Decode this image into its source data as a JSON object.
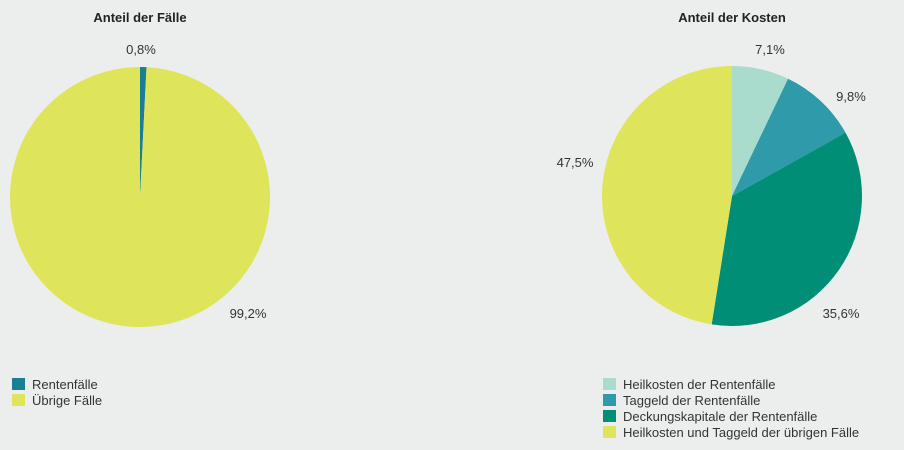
{
  "chart_data": [
    {
      "type": "pie",
      "title": "Anteil der Fälle",
      "slices": [
        {
          "label": "Rentenfälle",
          "value": 0.8,
          "value_label": "0,8%",
          "color": "#1a7f92"
        },
        {
          "label": "Übrige Fälle",
          "value": 99.2,
          "value_label": "99,2%",
          "color": "#dfe55b"
        }
      ]
    },
    {
      "type": "pie",
      "title": "Anteil der Kosten",
      "slices": [
        {
          "label": "Heilkosten der Rentenfälle",
          "value": 7.1,
          "value_label": "7,1%",
          "color": "#a9dccd"
        },
        {
          "label": "Taggeld der Rentenfälle",
          "value": 9.8,
          "value_label": "9,8%",
          "color": "#2f9aaa"
        },
        {
          "label": "Deckungskapitale der Rentenfälle",
          "value": 35.6,
          "value_label": "35,6%",
          "color": "#008f76"
        },
        {
          "label": "Heilkosten und Taggeld der übrigen Fälle",
          "value": 47.5,
          "value_label": "47,5%",
          "color": "#dfe55b"
        }
      ]
    }
  ]
}
